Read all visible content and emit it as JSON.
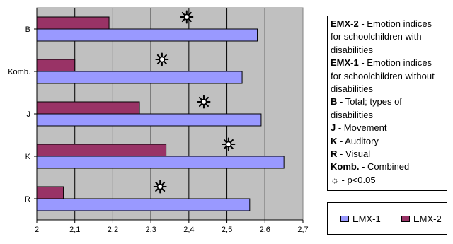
{
  "chart_data": {
    "type": "bar",
    "orientation": "horizontal",
    "categories": [
      "B",
      "Komb.",
      "J",
      "K",
      "R"
    ],
    "series": [
      {
        "name": "EMX-1",
        "values": [
          2.58,
          2.54,
          2.59,
          2.65,
          2.56
        ],
        "color": "#9999ff"
      },
      {
        "name": "EMX-2",
        "values": [
          2.19,
          2.1,
          2.27,
          2.34,
          2.07
        ],
        "color": "#993366"
      }
    ],
    "significance_markers": [
      true,
      true,
      true,
      true,
      true
    ],
    "xlim": [
      2,
      2.7
    ],
    "xticks": [
      "2",
      "2,1",
      "2,2",
      "2,3",
      "2,4",
      "2,5",
      "2,6",
      "2,7"
    ],
    "grid": true,
    "plot_background": "#c0c0c0",
    "legend_position": "bottom-right",
    "xlabel": "",
    "ylabel": ""
  },
  "notes": [
    {
      "key": "EMX-2",
      "text": " - Emotion indices for schoolchildren with disabilities"
    },
    {
      "key": "EMX-1",
      "text": " - Emotion indices for schoolchildren without disabilities"
    },
    {
      "key": "B",
      "text": " - Total; types of disabilities"
    },
    {
      "key": "J",
      "text": " - Movement"
    },
    {
      "key": "K",
      "text": " - Auditory"
    },
    {
      "key": "R",
      "text": " - Visual"
    },
    {
      "key": "Komb.",
      "text": " - Combined"
    },
    {
      "key": "☼",
      "text": " - p<0.05"
    }
  ],
  "legend": {
    "items": [
      "EMX-1",
      "EMX-2"
    ]
  }
}
